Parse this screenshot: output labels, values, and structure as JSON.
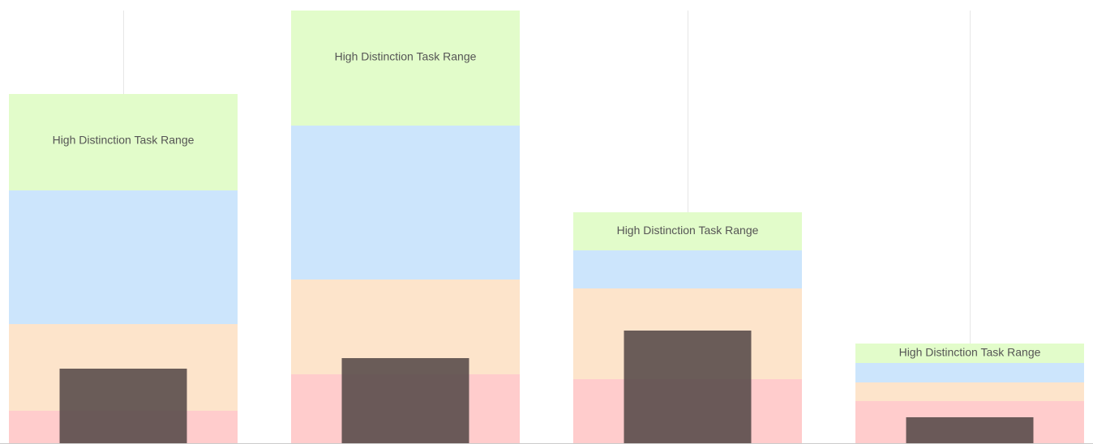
{
  "chart_data": {
    "type": "bar",
    "categories": [
      "",
      "",
      "",
      ""
    ],
    "ylim": [
      0,
      535
    ],
    "grid": "vertical",
    "legend": "none",
    "band_label": "High Distinction Task Range",
    "band_colors": {
      "fail": "#ffcccc",
      "pass": "#fde4cb",
      "credit": "#cce5fc",
      "distinction": "#e2fcca",
      "bar": "#5a4c4b",
      "gridline": "#e6e6e6",
      "baseline": "#cccccc"
    },
    "groups": [
      {
        "fail": 41,
        "pass": 107,
        "credit": 165,
        "distinction": 119,
        "value": 93
      },
      {
        "fail": 86,
        "pass": 117,
        "credit": 190,
        "distinction": 142,
        "value": 106
      },
      {
        "fail": 80,
        "pass": 112,
        "credit": 47,
        "distinction": 47,
        "value": 140
      },
      {
        "fail": 53,
        "pass": 23,
        "credit": 24,
        "distinction": 24,
        "value": 33
      }
    ]
  }
}
